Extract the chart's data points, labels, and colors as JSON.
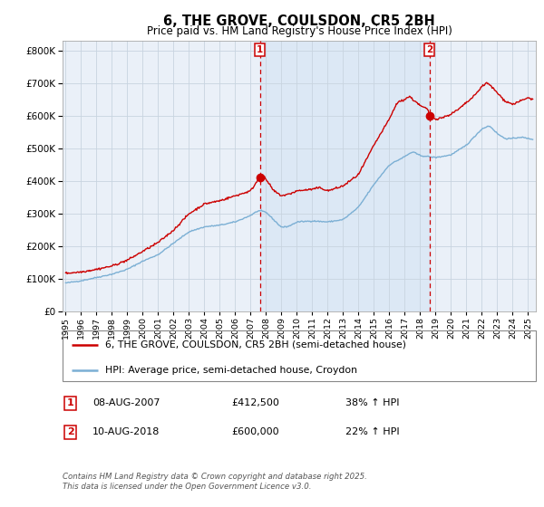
{
  "title": "6, THE GROVE, COULSDON, CR5 2BH",
  "subtitle": "Price paid vs. HM Land Registry's House Price Index (HPI)",
  "legend_line1": "6, THE GROVE, COULSDON, CR5 2BH (semi-detached house)",
  "legend_line2": "HPI: Average price, semi-detached house, Croydon",
  "annotation1_label": "1",
  "annotation1_date": "08-AUG-2007",
  "annotation1_price": "£412,500",
  "annotation1_hpi": "38% ↑ HPI",
  "annotation2_label": "2",
  "annotation2_date": "10-AUG-2018",
  "annotation2_price": "£600,000",
  "annotation2_hpi": "22% ↑ HPI",
  "footnote1": "Contains HM Land Registry data © Crown copyright and database right 2025.",
  "footnote2": "This data is licensed under the Open Government Licence v3.0.",
  "red_color": "#cc0000",
  "blue_color": "#7bafd4",
  "shading_color": "#dce8f5",
  "background_color": "#eaf0f8",
  "grid_color": "#c8d4e0",
  "vline_color": "#cc0000",
  "purchase1_year": 2007.6,
  "purchase2_year": 2018.6,
  "purchase1_price": 412500,
  "purchase2_price": 600000,
  "ylim": [
    0,
    830000
  ],
  "xlim_start": 1994.8,
  "xlim_end": 2025.5
}
